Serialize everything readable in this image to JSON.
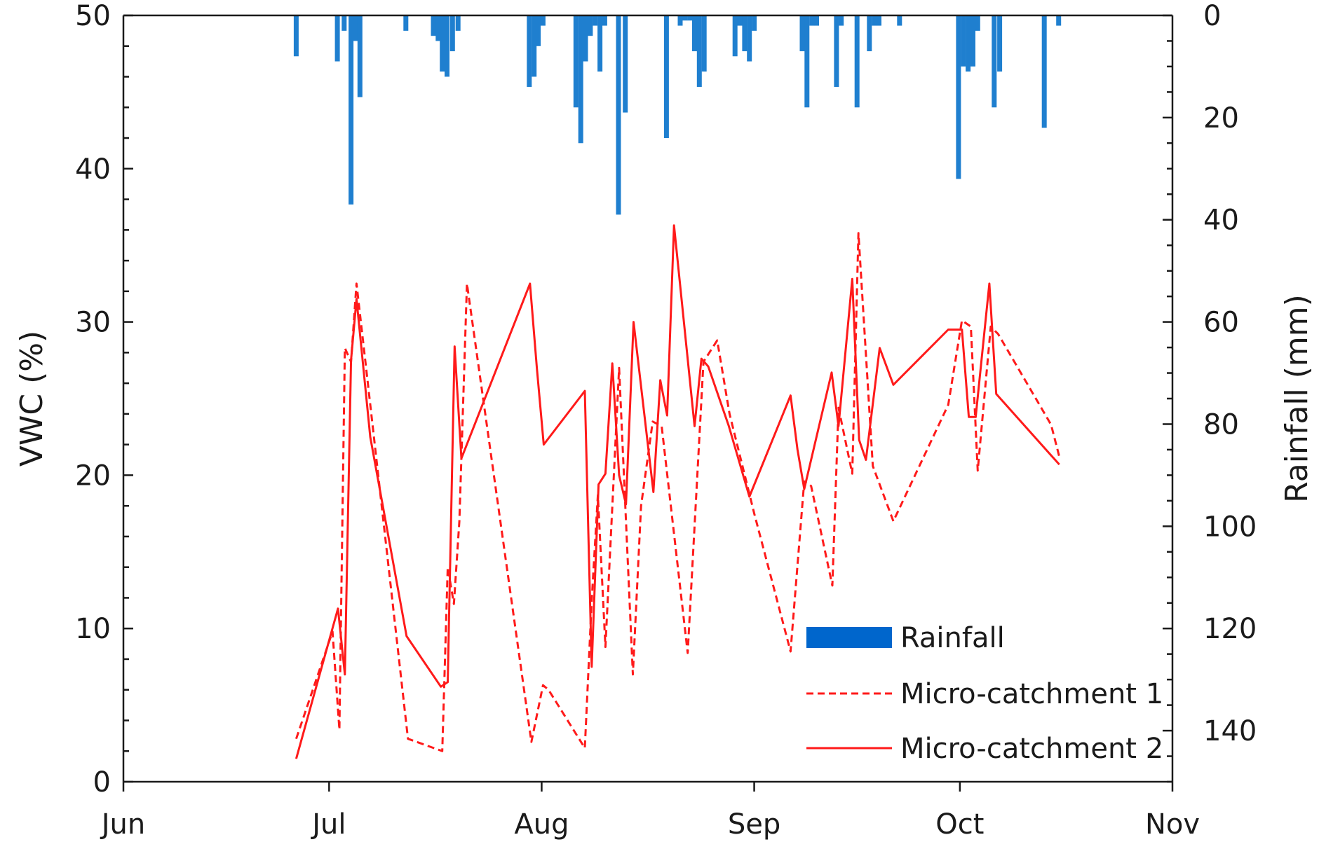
{
  "chart_data": {
    "type": "bar+line",
    "title": "",
    "ylabel_left": "VWC (%)",
    "ylabel_right": "Rainfall (mm)",
    "x_axis": {
      "unit": "day of year",
      "range": [
        152,
        305
      ],
      "ticks": [
        {
          "value": 152,
          "label": "Jun"
        },
        {
          "value": 182,
          "label": "Jul"
        },
        {
          "value": 213,
          "label": "Aug"
        },
        {
          "value": 244,
          "label": "Sep"
        },
        {
          "value": 274,
          "label": "Oct"
        },
        {
          "value": 305,
          "label": "Nov"
        }
      ]
    },
    "y_left": {
      "range": [
        0,
        50
      ],
      "ticks": [
        0,
        10,
        20,
        30,
        40,
        50
      ],
      "minor_step": 2
    },
    "y_right": {
      "range": [
        0,
        150
      ],
      "inverted": true,
      "ticks": [
        0,
        20,
        40,
        60,
        80,
        100,
        120,
        140
      ],
      "minor_step": 5
    },
    "legend": {
      "position": "bottom-right",
      "entries": [
        {
          "label": "Rainfall",
          "kind": "bar"
        },
        {
          "label": "Micro-catchment 1",
          "kind": "dashed"
        },
        {
          "label": "Micro-catchment 2",
          "kind": "solid"
        }
      ]
    },
    "colors": {
      "rainfall": "#1f7fcf",
      "legend_rainfall": "#0066cc",
      "mc": "#ff1a1a",
      "axis": "#1a1a1a"
    },
    "rainfall": {
      "name": "Rainfall",
      "x": [
        177.2,
        183.2,
        184.2,
        185.2,
        185.8,
        186.5,
        193.2,
        197.2,
        197.9,
        198.5,
        199.2,
        200,
        200.8,
        211.2,
        211.9,
        212.5,
        213.2,
        218,
        218.7,
        219.4,
        220.1,
        220.8,
        221.5,
        222.2,
        224.2,
        225.2,
        231.2,
        233.2,
        233.9,
        234.6,
        235.3,
        236.0,
        236.7,
        241.2,
        241.9,
        242.6,
        243.3,
        244.0,
        251,
        251.7,
        252.4,
        253.1,
        256,
        256.7,
        259,
        260.8,
        261.5,
        262.2,
        265.2,
        273.8,
        274.5,
        275.2,
        275.9,
        276.6,
        279,
        279.8,
        286.3,
        288.4
      ],
      "values": [
        8,
        9,
        3,
        37,
        5,
        16,
        3,
        4,
        5,
        11,
        12,
        7,
        3,
        14,
        12,
        6,
        2,
        18,
        25,
        9,
        4,
        2,
        11,
        2,
        39,
        19,
        24,
        2,
        1,
        1,
        7,
        14,
        11,
        8,
        2,
        7,
        9,
        3,
        7,
        18,
        2,
        2,
        14,
        2,
        18,
        7,
        2,
        2,
        2,
        32,
        10,
        11,
        10,
        3,
        18,
        11,
        22,
        2
      ]
    },
    "series": [
      {
        "name": "Micro-catchment 1",
        "style": "dashed",
        "x": [
          177.2,
          182.5,
          183.5,
          184.3,
          185.2,
          186,
          187.5,
          193.5,
          198.5,
          199.3,
          200.2,
          201,
          202.1,
          211.5,
          213.2,
          214,
          219.3,
          220.3,
          221.2,
          222.3,
          224.3,
          226.3,
          227.5,
          229.2,
          230.5,
          234.3,
          236.6,
          238.6,
          240.4,
          244,
          249.3,
          251.3,
          252.3,
          255.4,
          256.3,
          258.3,
          259.2,
          261.3,
          264.3,
          272.3,
          274.3,
          275.6,
          276.6,
          278.5,
          279.6,
          287.3,
          288.5
        ],
        "values": [
          2.8,
          9.8,
          3.4,
          28.3,
          27.4,
          32.5,
          26.6,
          2.8,
          2,
          14,
          11.6,
          17,
          32.5,
          2.6,
          6.3,
          6,
          2.2,
          11.8,
          18.7,
          8.8,
          27,
          7,
          18,
          23.5,
          23.2,
          8.4,
          27.4,
          28.8,
          24,
          17.5,
          8.5,
          19.6,
          19.3,
          12.8,
          24.4,
          20.1,
          35.8,
          20.6,
          17,
          24.6,
          30.1,
          29.7,
          20.3,
          29.7,
          29.2,
          23.3,
          21.2
        ]
      },
      {
        "name": "Micro-catchment 2",
        "style": "solid",
        "x": [
          177.2,
          183.3,
          184.3,
          185.2,
          186,
          188,
          193.3,
          198.3,
          199.3,
          200.3,
          201.3,
          211.3,
          212.3,
          213.3,
          219.3,
          220.3,
          221.3,
          222.3,
          223.3,
          224.3,
          225.3,
          226.4,
          229.3,
          230.3,
          231.3,
          232.3,
          235.3,
          236.3,
          237.3,
          240.3,
          243.3,
          249.3,
          250.3,
          251.3,
          255.3,
          256.3,
          258.3,
          259.3,
          260.3,
          262.3,
          264.3,
          272.3,
          274.3,
          275.3,
          276.3,
          278.3,
          279.3,
          287.3,
          288.5
        ],
        "values": [
          1.5,
          11.3,
          7,
          27.5,
          31.5,
          22.5,
          9.5,
          6.2,
          6.5,
          28.4,
          21.1,
          32.5,
          27,
          22,
          25.5,
          7.5,
          19.4,
          20.1,
          27.3,
          20,
          18.1,
          30,
          18.9,
          26.2,
          23.9,
          36.3,
          23.2,
          27.6,
          27.1,
          23.2,
          18.6,
          25.2,
          21.7,
          19.1,
          26.7,
          23.2,
          32.8,
          22.3,
          21,
          28.3,
          25.9,
          29.5,
          29.5,
          23.8,
          23.8,
          32.5,
          25.3,
          21.3,
          20.7
        ]
      }
    ]
  }
}
